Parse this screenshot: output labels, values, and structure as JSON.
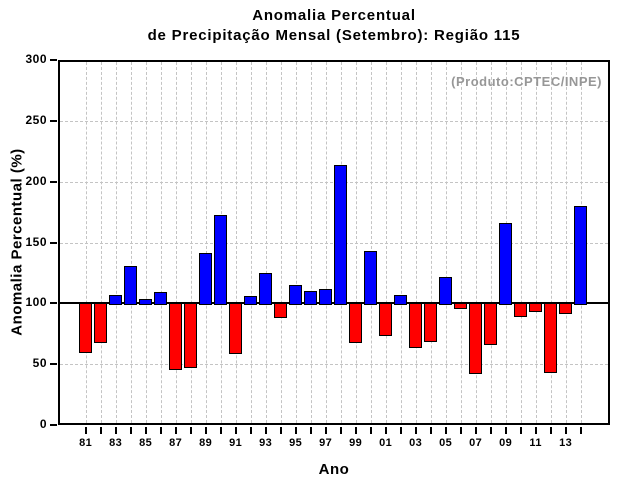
{
  "header": {
    "title_line1": "Anomalia Percentual",
    "title_line2": "de Precipitação Mensal (Setembro): Região 115"
  },
  "annotation": {
    "text": "(Produto:CPTEC/INPE)",
    "color": "#979797"
  },
  "chart_data": {
    "type": "bar",
    "title": "Anomalia Percentual de Precipitação Mensal (Setembro): Região 115",
    "xlabel": "Ano",
    "ylabel": "Anomalia Percentual (%)",
    "ylim": [
      0,
      300
    ],
    "yticks": [
      0,
      50,
      100,
      150,
      200,
      250,
      300
    ],
    "baseline": 100,
    "grid": true,
    "legend_position": "none",
    "x_labels_every": 2,
    "bar_color_above_baseline": "#0000ff",
    "bar_color_below_baseline": "#ff0000",
    "bar_outline_color": "#000000",
    "grid_color": "#c4c4c4",
    "categories": [
      "81",
      "82",
      "83",
      "84",
      "85",
      "86",
      "87",
      "88",
      "89",
      "90",
      "91",
      "92",
      "93",
      "94",
      "95",
      "96",
      "97",
      "98",
      "99",
      "00",
      "01",
      "02",
      "03",
      "04",
      "05",
      "06",
      "07",
      "08",
      "09",
      "10",
      "11",
      "12",
      "13",
      "14"
    ],
    "values": [
      59,
      67,
      107,
      131,
      104,
      109,
      45,
      47,
      141,
      173,
      58,
      106,
      125,
      88,
      115,
      110,
      112,
      214,
      67,
      143,
      73,
      107,
      63,
      68,
      122,
      95,
      42,
      66,
      166,
      89,
      93,
      43,
      91,
      180
    ]
  }
}
